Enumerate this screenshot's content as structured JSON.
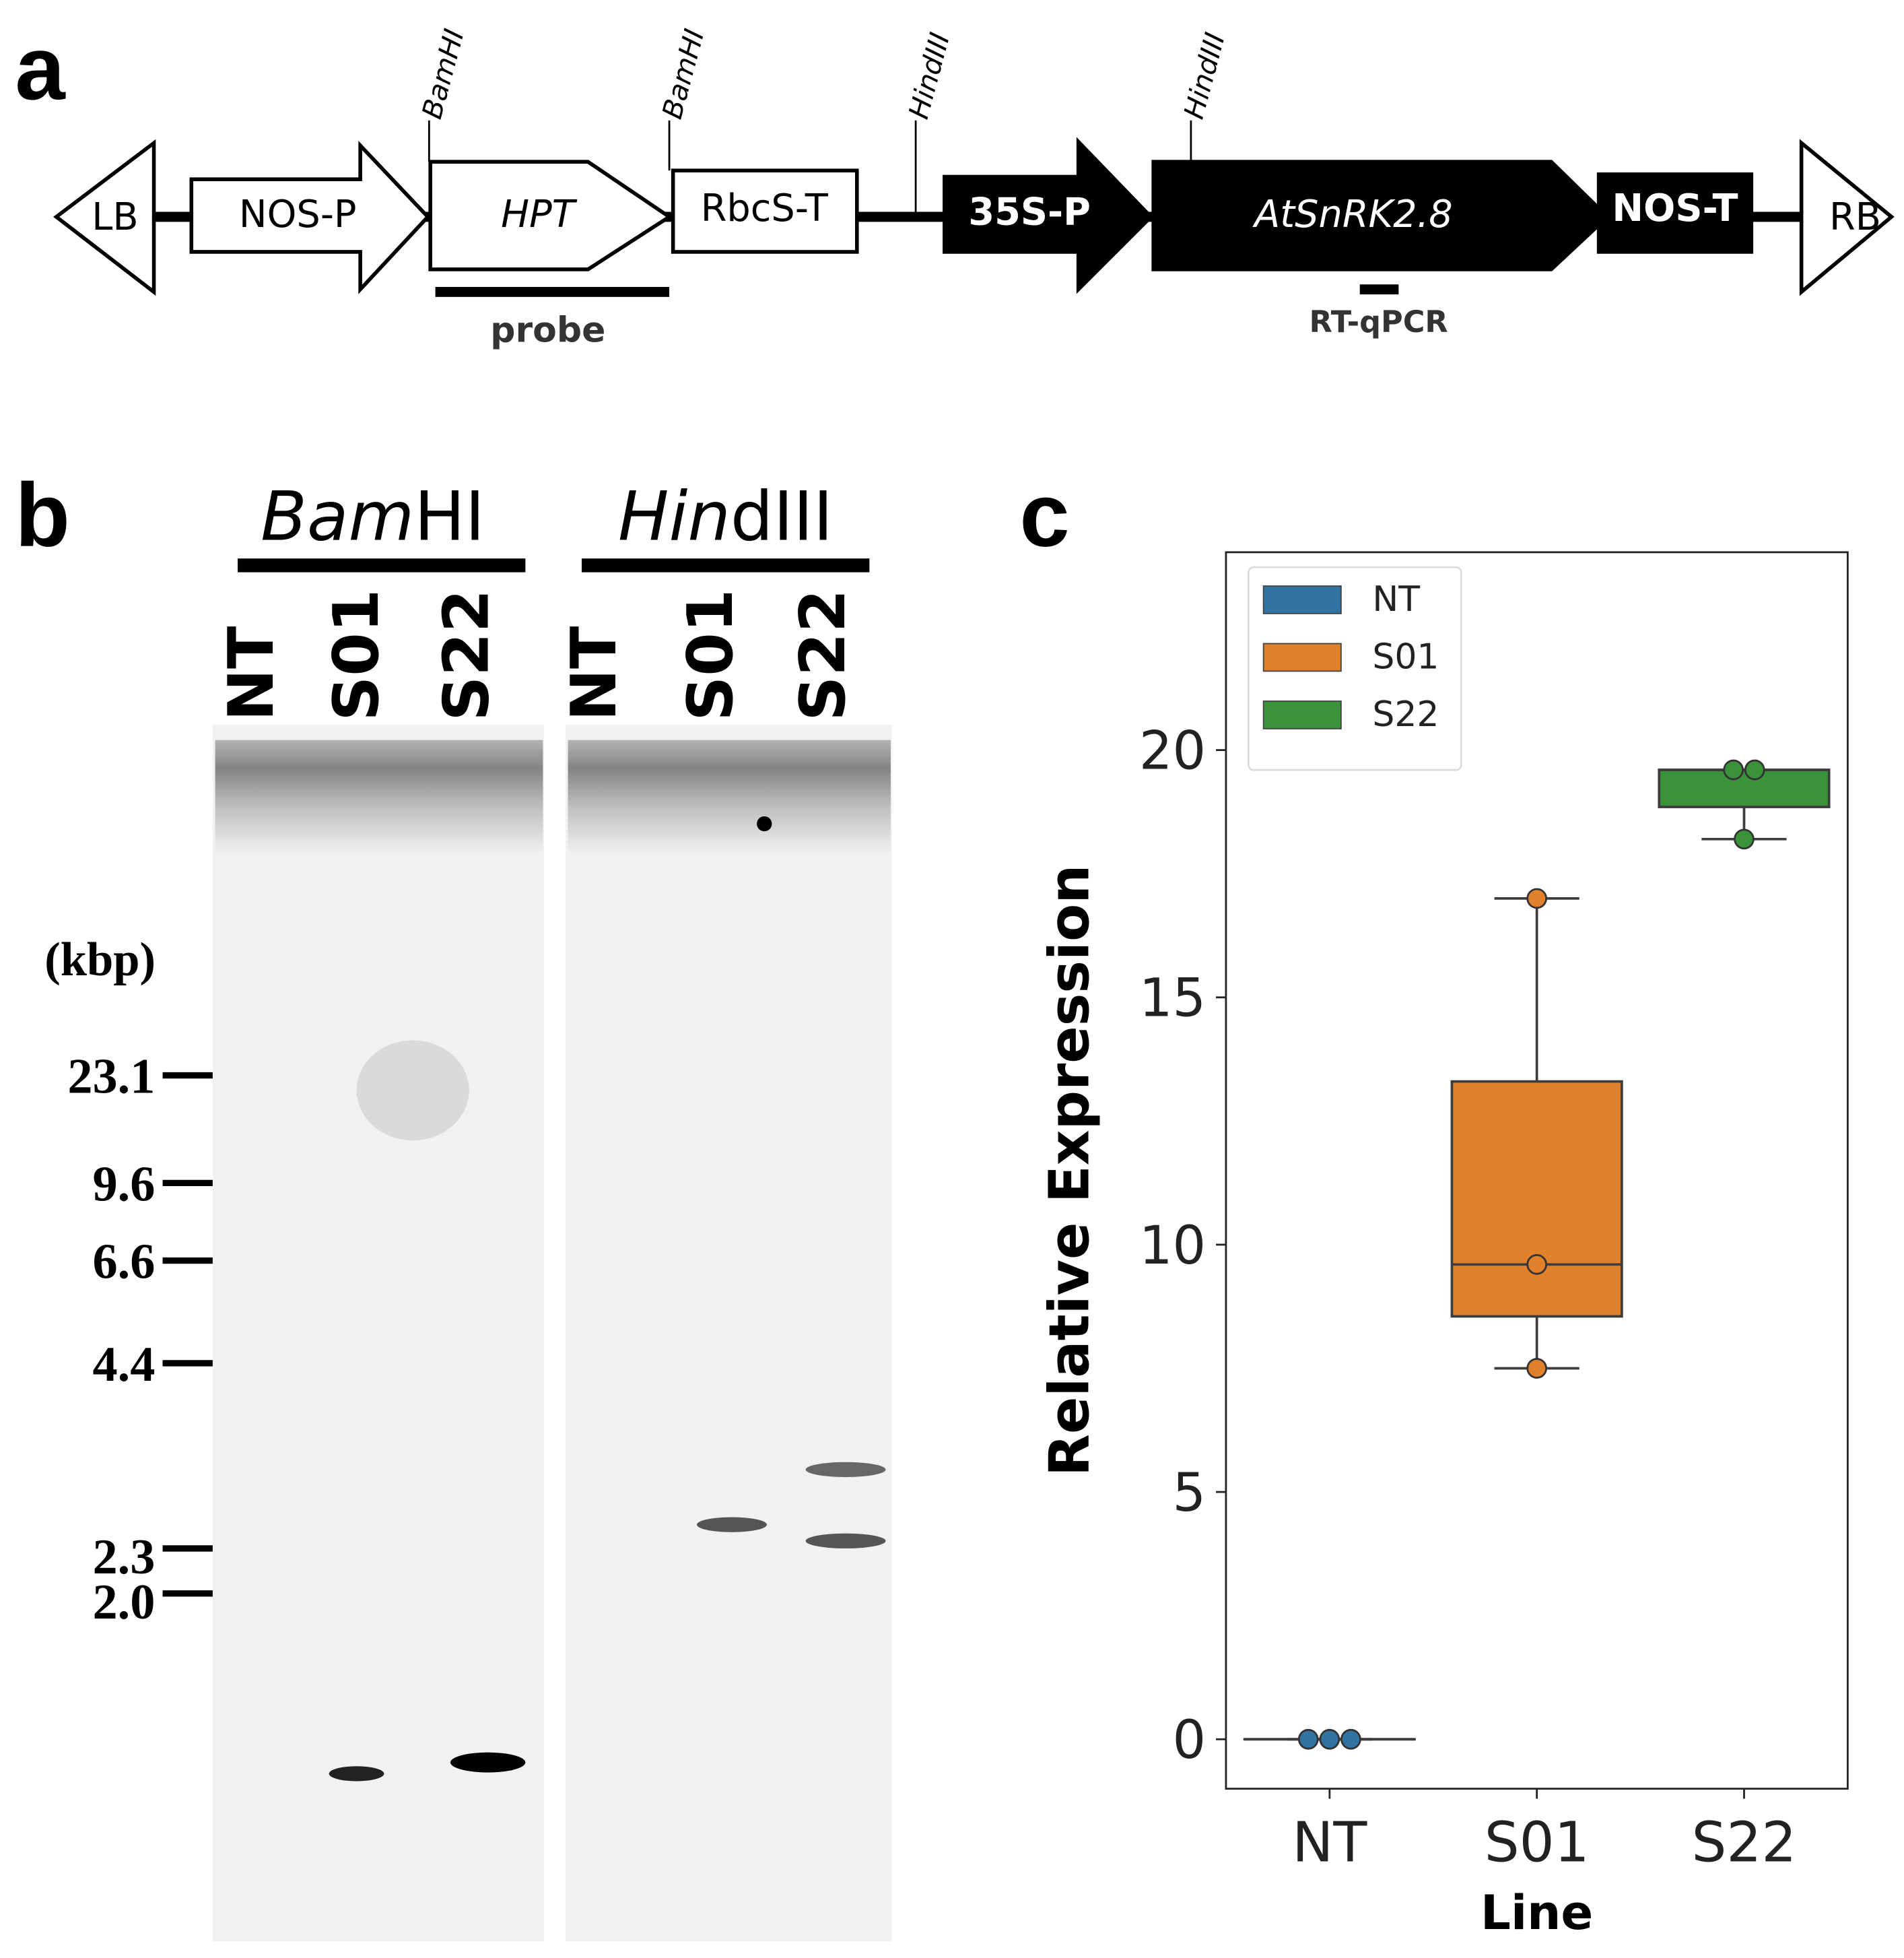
{
  "panels": {
    "a": "a",
    "b": "b",
    "c": "c"
  },
  "construct": {
    "elements": [
      "LB",
      "NOS-P",
      "HPT",
      "RbcS-T",
      "35S-P",
      "AtSnRK2.8",
      "NOS-T",
      "RB"
    ],
    "sites": [
      "BamHI",
      "BamHI",
      "HindIII",
      "HindIII"
    ],
    "probe": "probe",
    "assay": "RT-qPCR"
  },
  "blot": {
    "enzymes": [
      {
        "italic": "Bam",
        "roman": "HI"
      },
      {
        "italic": "Hin",
        "roman": "dIII"
      }
    ],
    "lanes": [
      "NT",
      "S01",
      "S22",
      "NT",
      "S01",
      "S22"
    ],
    "unit": "(kbp)",
    "markers": [
      23.1,
      9.6,
      6.6,
      4.4,
      2.3,
      {
        "value": 2,
        "label": "2.0"
      }
    ]
  },
  "chart_data": {
    "type": "box",
    "xlabel": "Line",
    "ylabel": "Relative Expression",
    "categories": [
      "NT",
      "S01",
      "S22"
    ],
    "series": [
      {
        "name": "NT",
        "color": "#3274a1",
        "whislo": 0,
        "q1": 0,
        "median": 0,
        "q3": 0,
        "whishi": 0,
        "points": [
          0,
          0,
          0
        ]
      },
      {
        "name": "S01",
        "color": "#e1812c",
        "whislo": 7.5,
        "q1": 8.55,
        "median": 9.6,
        "q3": 13.3,
        "whishi": 17.0,
        "points": [
          17.0,
          9.6,
          7.5
        ]
      },
      {
        "name": "S22",
        "color": "#3a923a",
        "whislo": 18.2,
        "q1": 18.85,
        "median": 19.6,
        "q3": 19.6,
        "whishi": 19.6,
        "points": [
          19.6,
          19.6,
          18.2
        ]
      }
    ],
    "ylim": [
      -1,
      24
    ],
    "yticks": [
      0,
      5,
      10,
      15,
      20
    ],
    "legend": "upper left"
  }
}
